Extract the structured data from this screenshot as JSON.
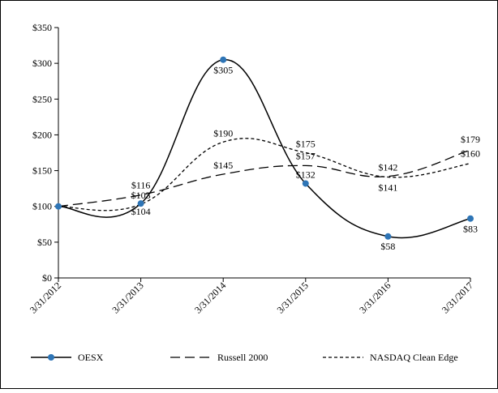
{
  "chart_data": {
    "type": "line",
    "title": "",
    "xlabel": "",
    "ylabel": "",
    "categories": [
      "3/31/2012",
      "3/31/2013",
      "3/31/2014",
      "3/31/2015",
      "3/31/2016",
      "3/31/2017"
    ],
    "ylim": [
      0,
      350
    ],
    "yticks": [
      0,
      50,
      100,
      150,
      200,
      250,
      300,
      350
    ],
    "ytick_labels": [
      "$0",
      "$50",
      "$100",
      "$150",
      "$200",
      "$250",
      "$300",
      "$350"
    ],
    "grid": false,
    "legend_position": "bottom",
    "series": [
      {
        "name": "OESX",
        "style": "solid",
        "markers": true,
        "color": "#000000",
        "marker_color": "#2e75b6",
        "values": [
          100,
          104,
          305,
          132,
          58,
          83
        ],
        "labels": [
          "",
          "$104",
          "$305",
          "$132",
          "$58",
          "$83"
        ]
      },
      {
        "name": "Russell 2000",
        "style": "long-dash",
        "markers": false,
        "color": "#000000",
        "values": [
          100,
          116,
          145,
          157,
          142,
          179
        ],
        "labels": [
          "",
          "$116",
          "$145",
          "$157",
          "$142",
          "$179"
        ]
      },
      {
        "name": "NASDAQ Clean Edge",
        "style": "short-dash",
        "markers": false,
        "color": "#000000",
        "values": [
          100,
          103,
          190,
          175,
          141,
          160
        ],
        "labels": [
          "",
          "$103",
          "$190",
          "$175",
          "$141",
          "$160"
        ]
      }
    ]
  }
}
